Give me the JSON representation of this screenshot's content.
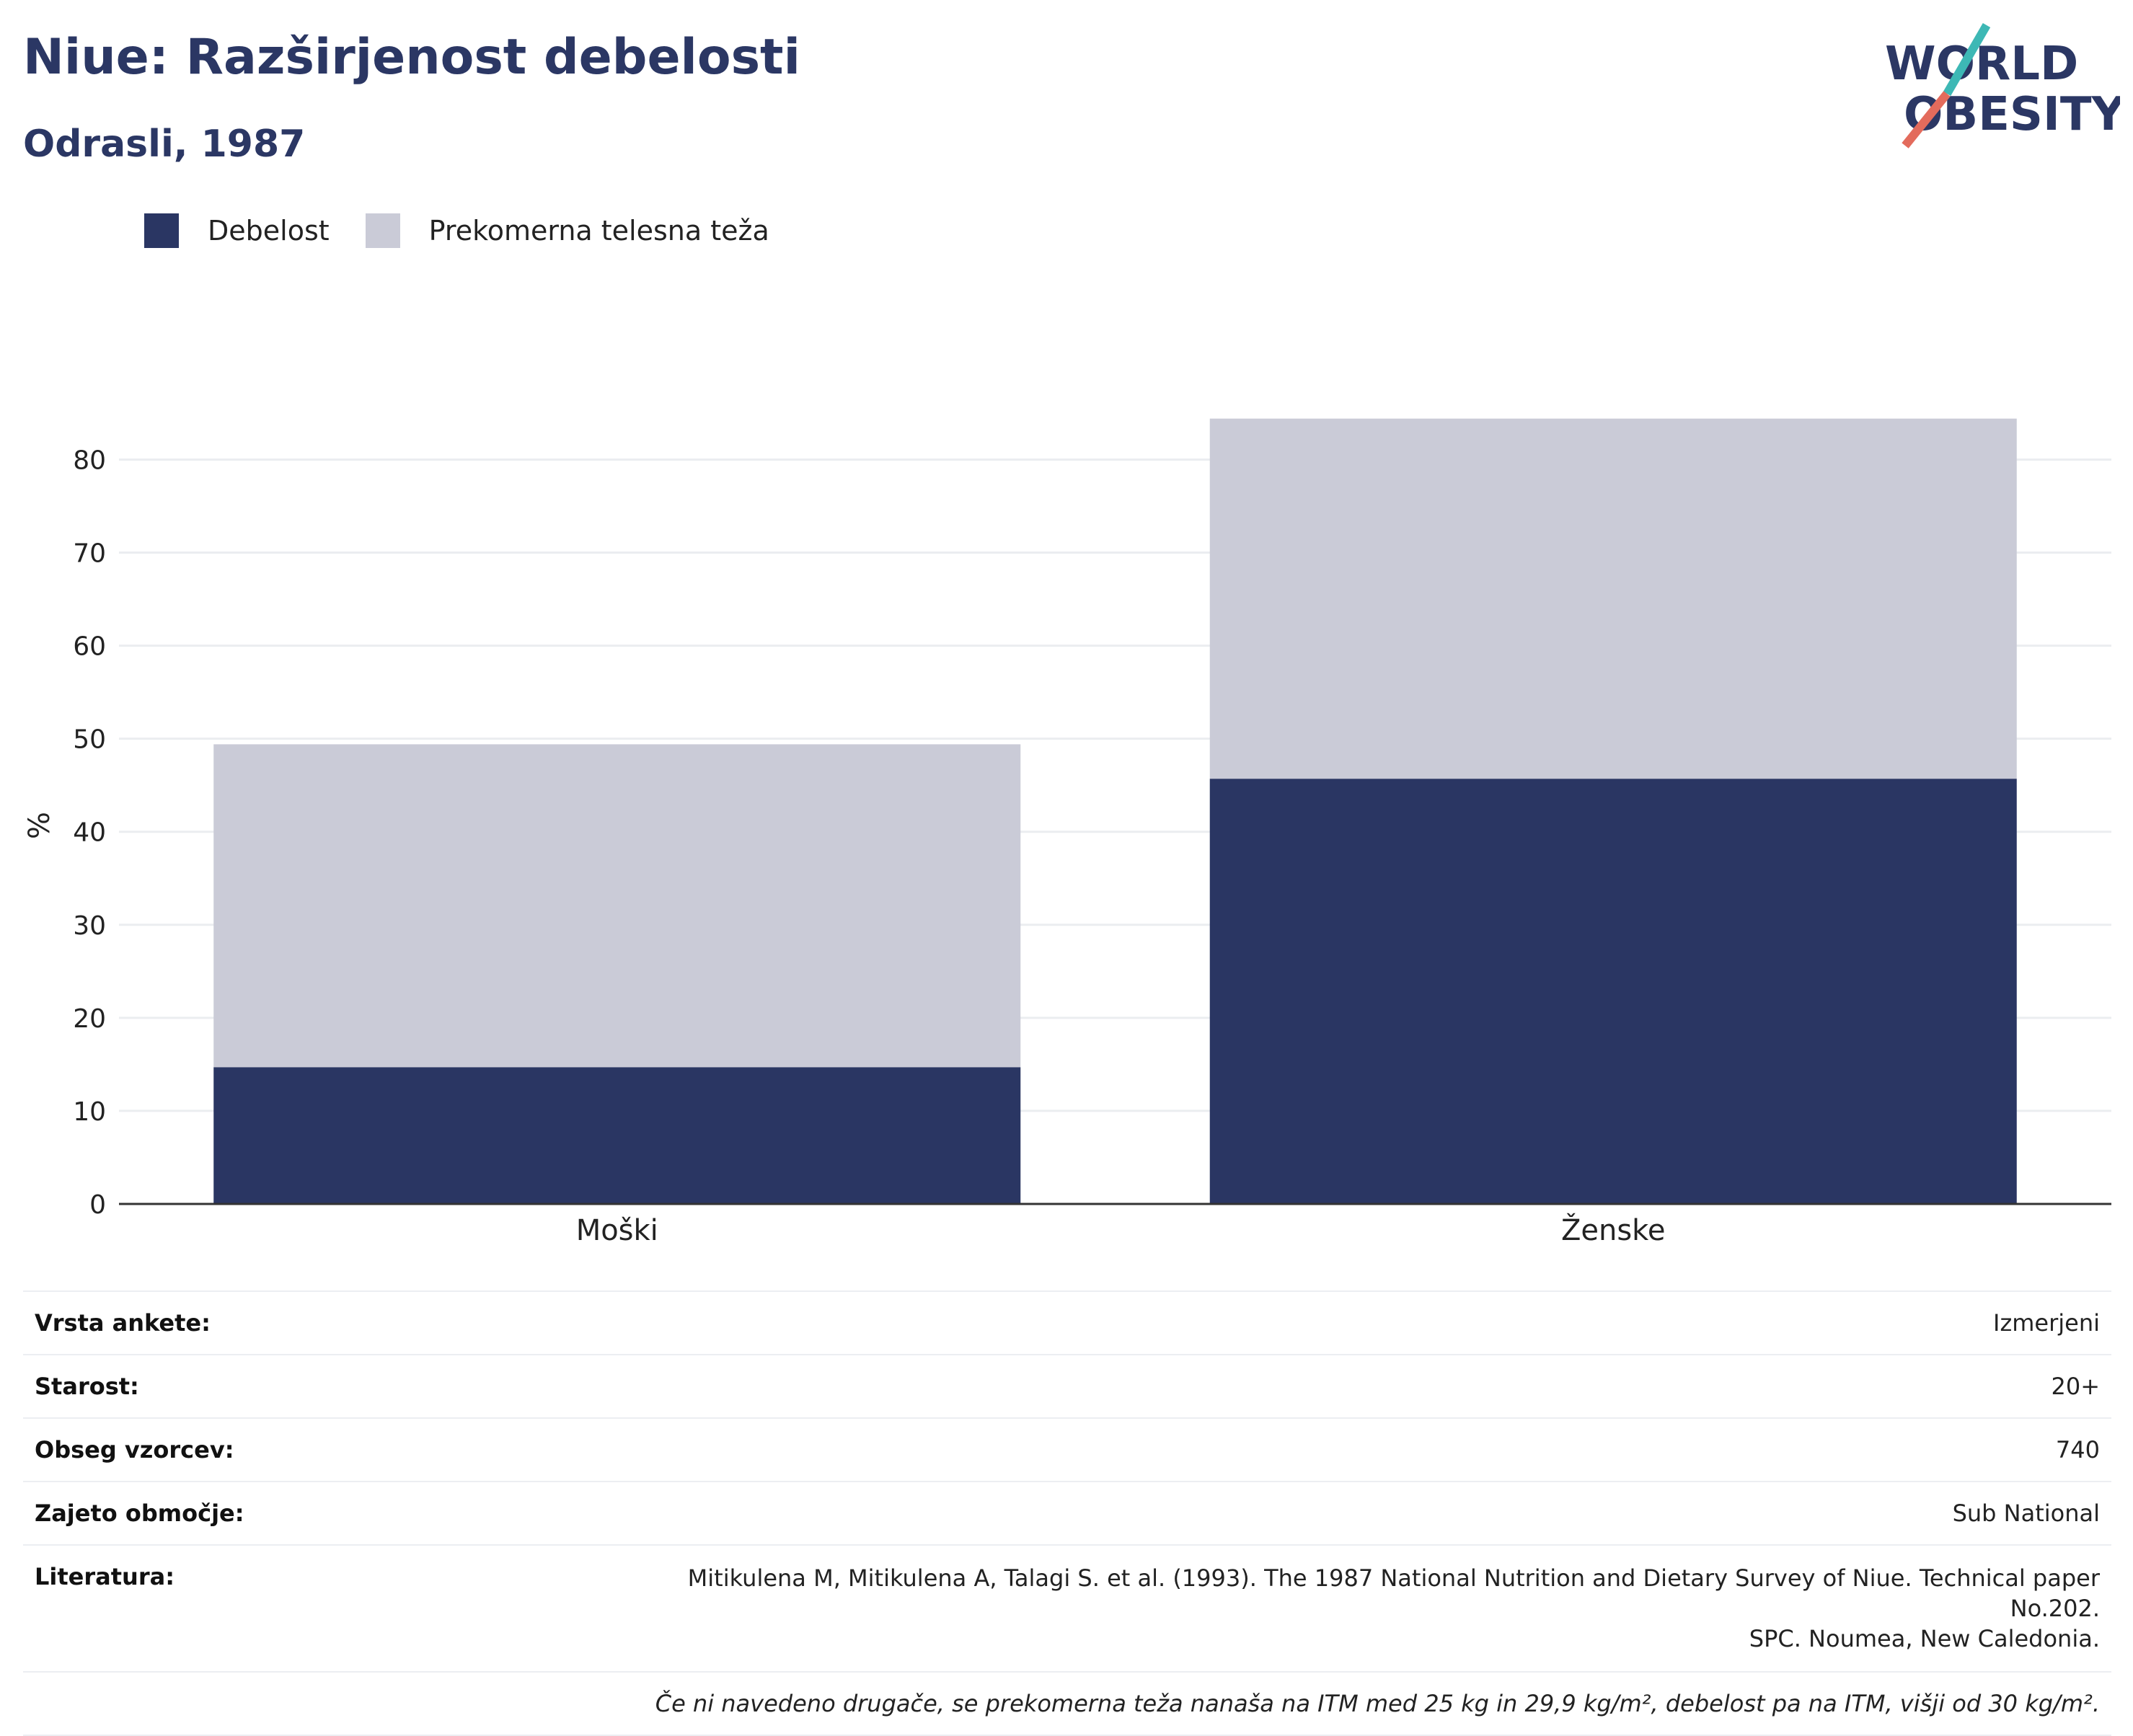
{
  "header": {
    "title": "Niue: Razširjenost debelosti",
    "subtitle": "Odrasli, 1987",
    "logo_line1": "WORLD",
    "logo_line2": "OBESITY"
  },
  "colors": {
    "obesity": "#2a3663",
    "overweight": "#cacbd7",
    "title": "#2b3764",
    "logo_teal": "#3db8b5",
    "logo_coral": "#e36b5c"
  },
  "chart_data": {
    "type": "bar",
    "stacked": true,
    "title": "Niue: Razširjenost debelosti",
    "subtitle": "Odrasli, 1987",
    "xlabel": "",
    "ylabel": "%",
    "ylim": [
      0,
      86
    ],
    "yticks": [
      0,
      10,
      20,
      30,
      40,
      50,
      60,
      70,
      80
    ],
    "grid": true,
    "legend_position": "top-left",
    "categories": [
      "Moški",
      "Ženske"
    ],
    "series": [
      {
        "name": "Debelost",
        "color": "#2a3663",
        "values": [
          14.7,
          45.7
        ]
      },
      {
        "name": "Prekomerna telesna teža",
        "color": "#cacbd7",
        "values": [
          34.7,
          38.7
        ]
      }
    ]
  },
  "info": {
    "rows": [
      {
        "key": "Vrsta ankete:",
        "value": "Izmerjeni"
      },
      {
        "key": "Starost:",
        "value": "20+"
      },
      {
        "key": "Obseg vzorcev:",
        "value": "740"
      },
      {
        "key": "Zajeto območje:",
        "value": "Sub National"
      }
    ],
    "reference_key": "Literatura:",
    "reference_line1": "Mitikulena M, Mitikulena A, Talagi S. et al. (1993). The 1987 National Nutrition and Dietary Survey of Niue. Technical paper No.202.",
    "reference_line2": "SPC. Noumea, New Caledonia.",
    "note": "Če ni navedeno drugače, se prekomerna teža nanaša na ITM med 25 kg in 29,9 kg/m², debelost pa na ITM, višji od 30 kg/m²."
  }
}
